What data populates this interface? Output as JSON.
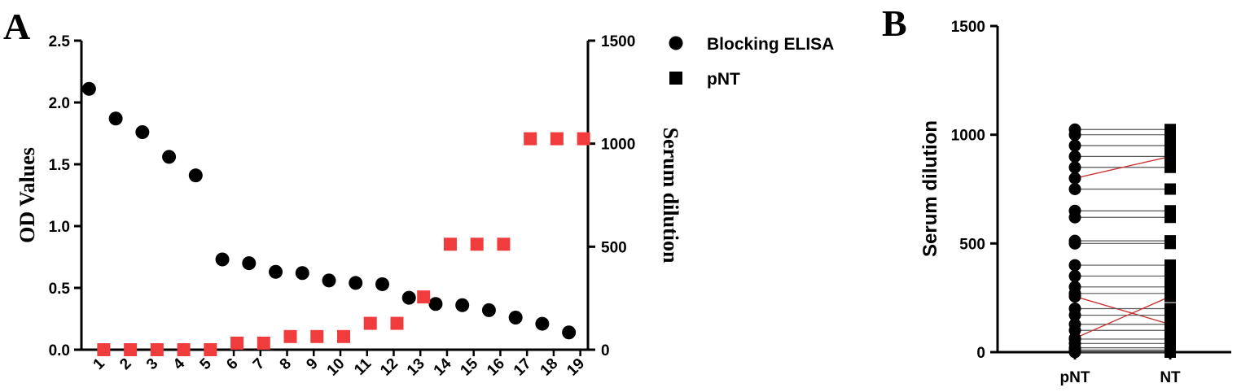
{
  "panels": {
    "a": "A",
    "b": "B"
  },
  "colors": {
    "black": "#000000",
    "red": "#f03c3c",
    "link": "#555555",
    "link_cross": "#cc3333"
  },
  "chart_data": [
    {
      "panel": "A",
      "type": "scatter",
      "xlabel": "",
      "ylabel": "OD Values",
      "y2label": "Serum dilution",
      "categories": [
        "1",
        "2",
        "3",
        "4",
        "5",
        "6",
        "7",
        "8",
        "9",
        "10",
        "11",
        "12",
        "13",
        "14",
        "15",
        "16",
        "17",
        "18",
        "19"
      ],
      "ylim": [
        0,
        2.5
      ],
      "y2lim": [
        0,
        1500
      ],
      "yticks": [
        "0.0",
        "0.5",
        "1.0",
        "1.5",
        "2.0",
        "2.5"
      ],
      "y2ticks": [
        "0",
        "500",
        "1000",
        "1500"
      ],
      "legend_position": "top-right",
      "series": [
        {
          "name": "Blocking ELISA",
          "marker": "circle",
          "axis": "left",
          "values": [
            2.11,
            1.87,
            1.76,
            1.56,
            1.41,
            0.73,
            0.7,
            0.63,
            0.62,
            0.56,
            0.54,
            0.53,
            0.42,
            0.37,
            0.36,
            0.32,
            0.26,
            0.21,
            0.14
          ]
        },
        {
          "name": "pNT",
          "marker": "square",
          "axis": "right",
          "values": [
            0,
            0,
            0,
            0,
            0,
            32,
            32,
            64,
            64,
            64,
            128,
            128,
            256,
            512,
            512,
            512,
            1024,
            1024,
            1024
          ]
        }
      ]
    },
    {
      "panel": "B",
      "type": "scatter",
      "xlabel": "",
      "ylabel": "Serum dilution",
      "categories": [
        "pNT",
        "NT"
      ],
      "ylim": [
        0,
        1500
      ],
      "yticks": [
        "0",
        "500",
        "1000",
        "1500"
      ],
      "pairs": [
        {
          "pNT": 1024,
          "NT": 1024,
          "cross": false
        },
        {
          "pNT": 1000,
          "NT": 1000,
          "cross": false
        },
        {
          "pNT": 950,
          "NT": 950,
          "cross": false
        },
        {
          "pNT": 900,
          "NT": 900,
          "cross": false
        },
        {
          "pNT": 850,
          "NT": 850,
          "cross": false
        },
        {
          "pNT": 800,
          "NT": 900,
          "cross": true
        },
        {
          "pNT": 750,
          "NT": 750,
          "cross": false
        },
        {
          "pNT": 650,
          "NT": 650,
          "cross": false
        },
        {
          "pNT": 620,
          "NT": 620,
          "cross": false
        },
        {
          "pNT": 512,
          "NT": 512,
          "cross": false
        },
        {
          "pNT": 500,
          "NT": 500,
          "cross": false
        },
        {
          "pNT": 400,
          "NT": 400,
          "cross": false
        },
        {
          "pNT": 350,
          "NT": 350,
          "cross": false
        },
        {
          "pNT": 300,
          "NT": 300,
          "cross": false
        },
        {
          "pNT": 270,
          "NT": 270,
          "cross": false
        },
        {
          "pNT": 256,
          "NT": 128,
          "cross": true
        },
        {
          "pNT": 200,
          "NT": 200,
          "cross": false
        },
        {
          "pNT": 170,
          "NT": 170,
          "cross": false
        },
        {
          "pNT": 128,
          "NT": 128,
          "cross": false
        },
        {
          "pNT": 100,
          "NT": 100,
          "cross": false
        },
        {
          "pNT": 64,
          "NT": 256,
          "cross": true
        },
        {
          "pNT": 60,
          "NT": 60,
          "cross": false
        },
        {
          "pNT": 40,
          "NT": 40,
          "cross": false
        },
        {
          "pNT": 20,
          "NT": 20,
          "cross": false
        },
        {
          "pNT": 10,
          "NT": 10,
          "cross": false
        },
        {
          "pNT": 0,
          "NT": 0,
          "cross": false
        }
      ]
    }
  ]
}
